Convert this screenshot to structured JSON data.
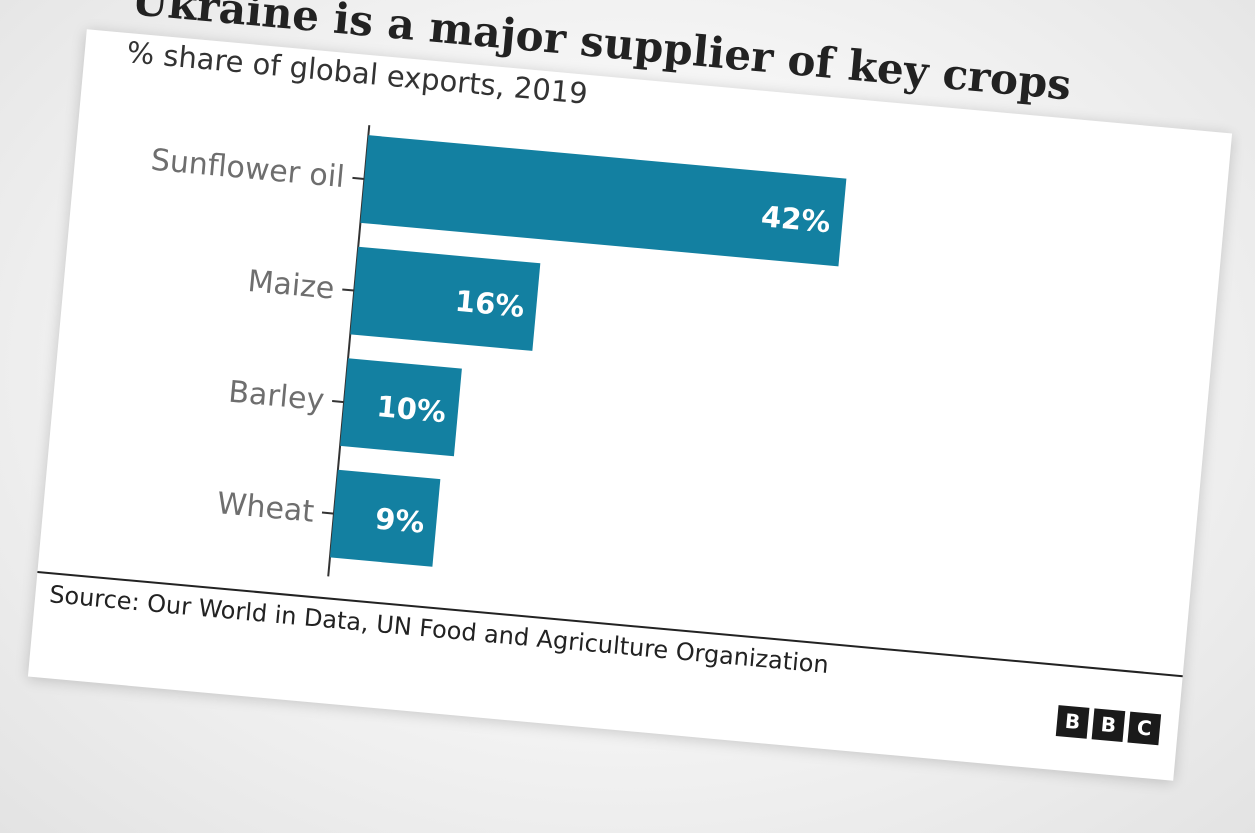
{
  "chart_data": {
    "type": "bar",
    "orientation": "horizontal",
    "title": "Ukraine is a major supplier of key crops",
    "subtitle": "% share of global exports, 2019",
    "categories": [
      "Sunflower oil",
      "Maize",
      "Barley",
      "Wheat"
    ],
    "values": [
      42,
      16,
      10,
      9
    ],
    "value_labels": [
      "42%",
      "16%",
      "10%",
      "9%"
    ],
    "xlim": [
      0,
      70
    ],
    "bar_color": "#1380a1",
    "grid": false,
    "legend": "none"
  },
  "source": "Source: Our World in Data, UN Food and Agriculture Organization",
  "logo": [
    "B",
    "B",
    "C"
  ]
}
